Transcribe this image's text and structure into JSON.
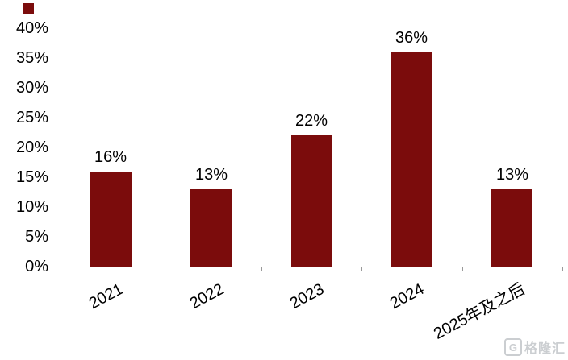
{
  "page": {
    "background": "#ffffff"
  },
  "legend": {
    "marker_color": "#7B0C0C"
  },
  "chart_data": {
    "type": "bar",
    "title": "",
    "xlabel": "",
    "ylabel": "",
    "categories": [
      "2021",
      "2022",
      "2023",
      "2024",
      "2025年及之后"
    ],
    "values": [
      16,
      13,
      22,
      36,
      13
    ],
    "data_labels": [
      "16%",
      "13%",
      "22%",
      "36%",
      "13%"
    ],
    "y_ticks": [
      {
        "value": 40,
        "label": "40%"
      },
      {
        "value": 35,
        "label": "35%"
      },
      {
        "value": 30,
        "label": "30%"
      },
      {
        "value": 25,
        "label": "25%"
      },
      {
        "value": 20,
        "label": "20%"
      },
      {
        "value": 15,
        "label": "15%"
      },
      {
        "value": 10,
        "label": "10%"
      },
      {
        "value": 5,
        "label": "5%"
      },
      {
        "value": 0,
        "label": "0%"
      }
    ],
    "ylim": [
      0,
      40
    ],
    "grid": false,
    "legend_position": "top-left-marker-only",
    "bar_color": "#7B0C0C",
    "axis_color": "#999999",
    "label_color": "#000000",
    "x_label_rotation_deg": -28
  },
  "watermark": {
    "logo_letter": "G",
    "text": "格隆汇",
    "color": "#cbced1"
  }
}
